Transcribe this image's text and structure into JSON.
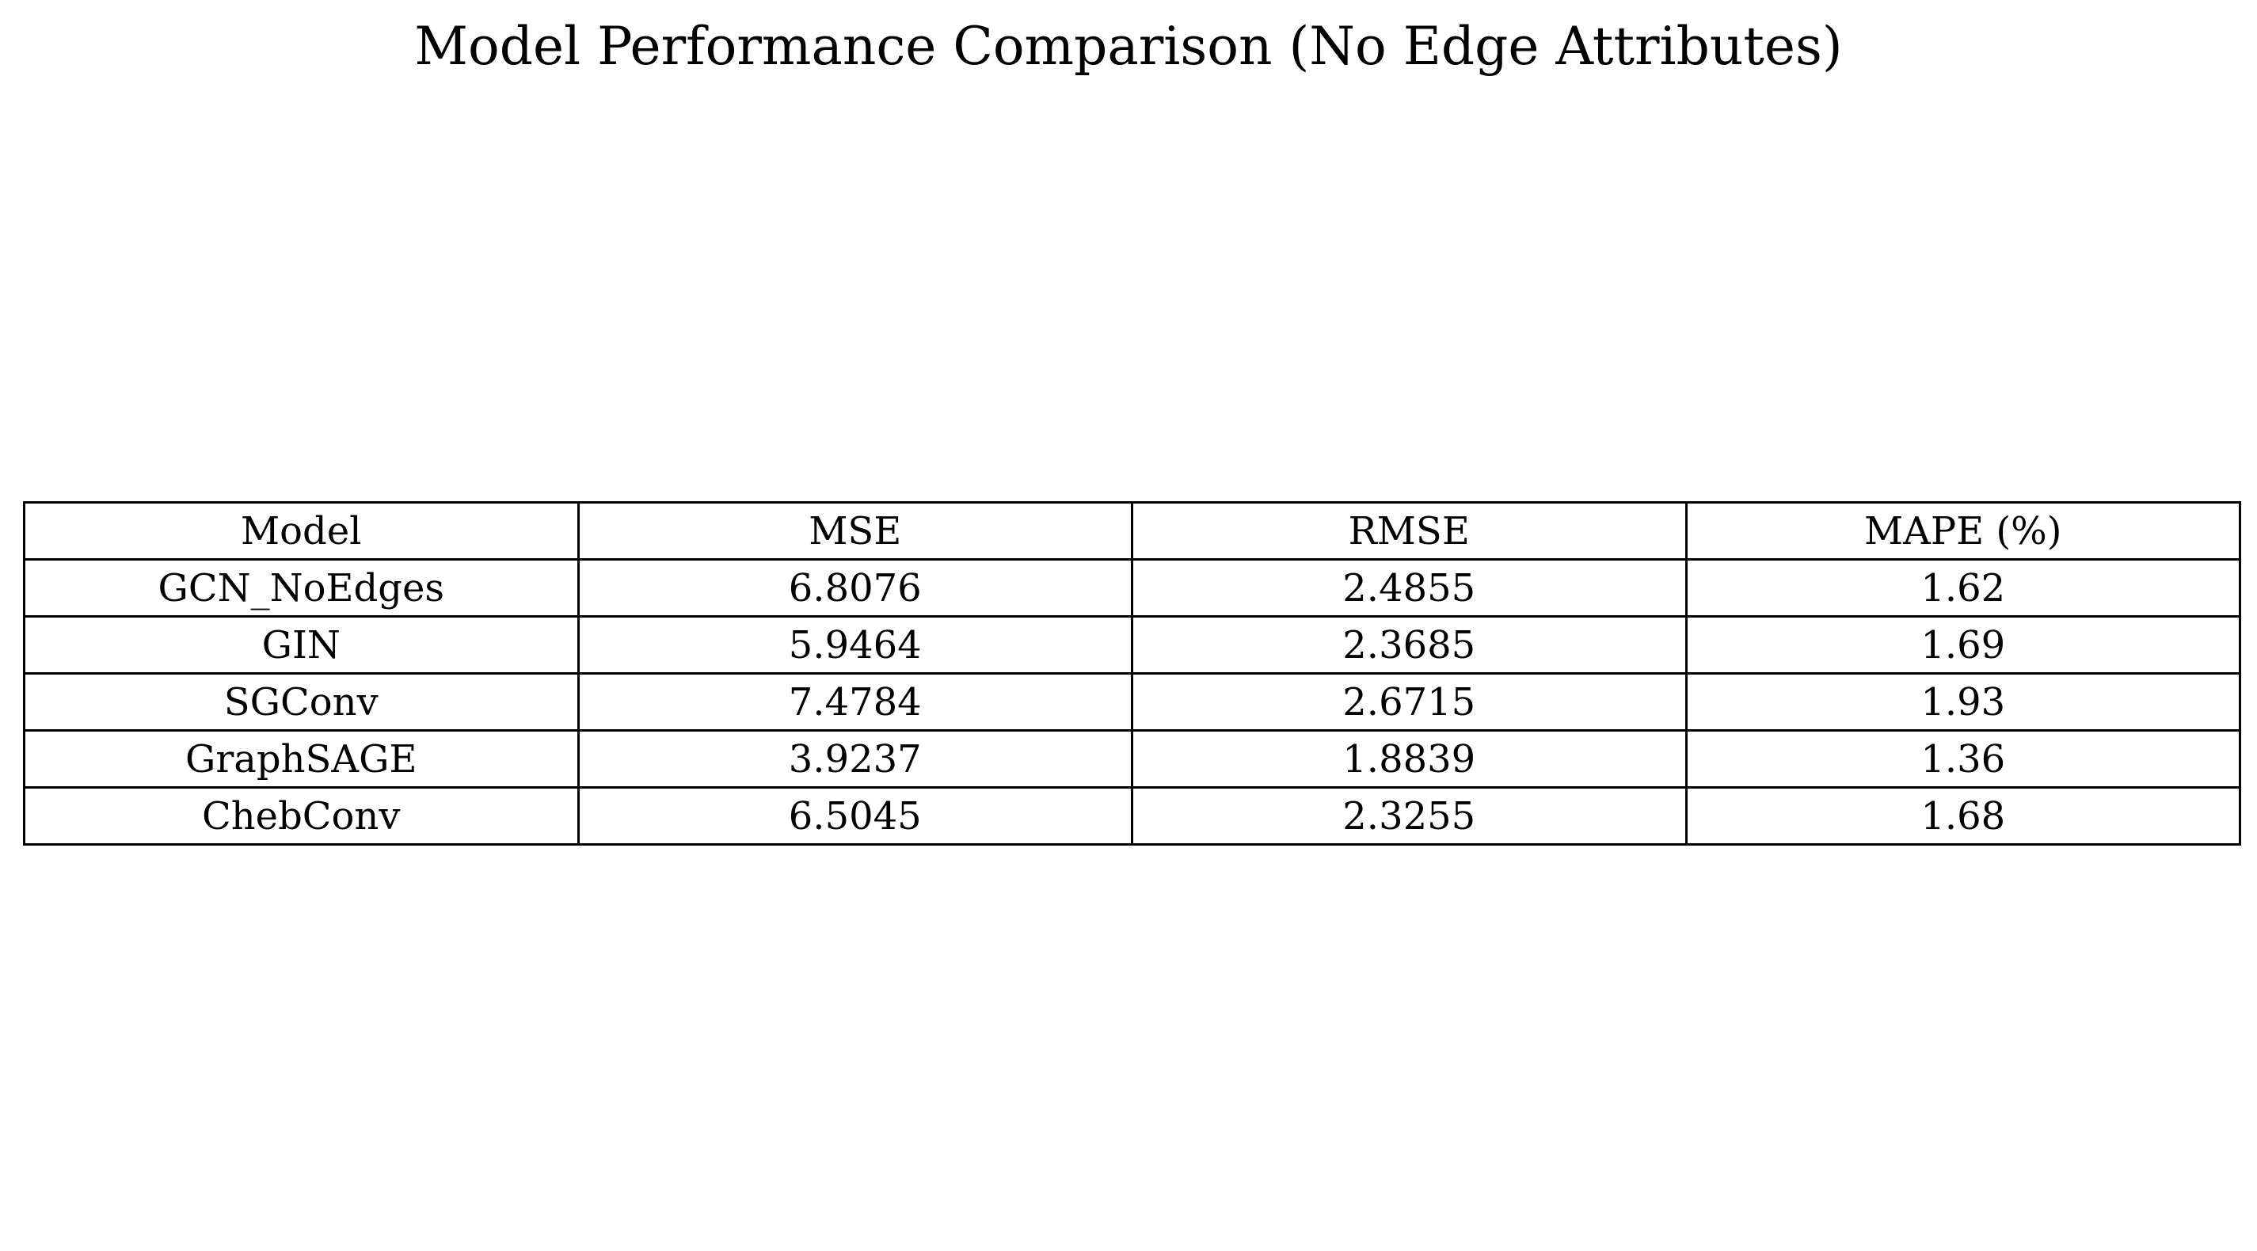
{
  "chart_data": {
    "type": "table",
    "title": "Model Performance Comparison (No Edge Attributes)",
    "columns": [
      "Model",
      "MSE",
      "RMSE",
      "MAPE (%)"
    ],
    "rows": [
      [
        "GCN_NoEdges",
        "6.8076",
        "2.4855",
        "1.62"
      ],
      [
        "GIN",
        "5.9464",
        "2.3685",
        "1.69"
      ],
      [
        "SGConv",
        "7.4784",
        "2.6715",
        "1.93"
      ],
      [
        "GraphSAGE",
        "3.9237",
        "1.8839",
        "1.36"
      ],
      [
        "ChebConv",
        "6.5045",
        "2.3255",
        "1.68"
      ]
    ]
  }
}
